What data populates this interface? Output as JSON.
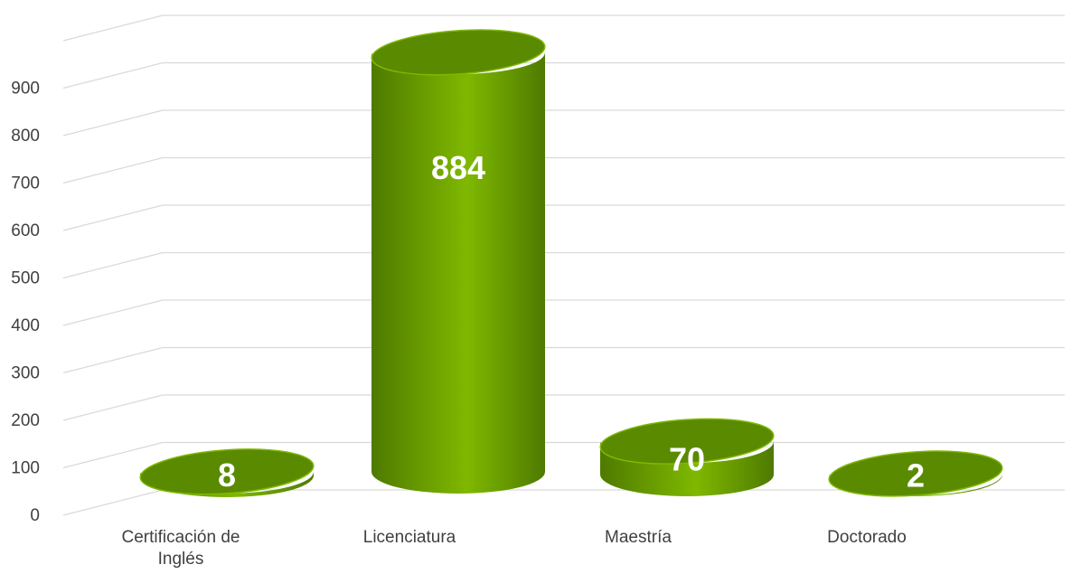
{
  "chart_data": {
    "type": "bar",
    "style": "3d-cylinder",
    "categories": [
      "Certificación de Inglés",
      "Licenciatura",
      "Maestría",
      "Doctorado"
    ],
    "category_lines": [
      [
        "Certificación de",
        "Inglés"
      ],
      [
        "Licenciatura"
      ],
      [
        "Maestría"
      ],
      [
        "Doctorado"
      ]
    ],
    "values": [
      8,
      884,
      70,
      2
    ],
    "data_labels": [
      "8",
      "884",
      "70",
      "2"
    ],
    "yticks": [
      "0",
      "100",
      "200",
      "300",
      "400",
      "500",
      "600",
      "700",
      "800",
      "900"
    ],
    "ylim": [
      0,
      1000
    ],
    "grid": true,
    "colors": {
      "bar_light": "#7fb800",
      "bar_dark": "#4e7a00",
      "bar_top": "#5a8a00",
      "grid": "#d9d9d9",
      "text": "#404040",
      "label": "#ffffff"
    }
  }
}
